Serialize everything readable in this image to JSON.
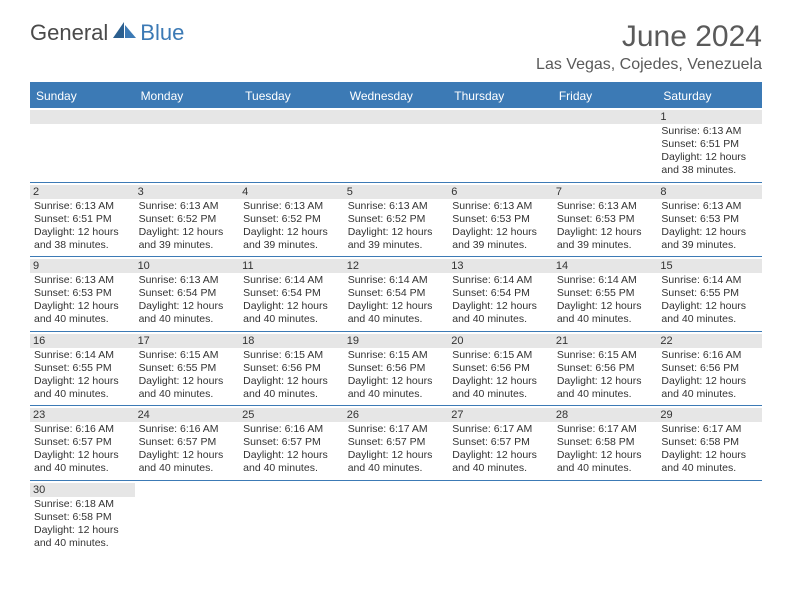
{
  "logo": {
    "text1": "General",
    "text2": "Blue"
  },
  "title": "June 2024",
  "location": "Las Vegas, Cojedes, Venezuela",
  "day_names": [
    "Sunday",
    "Monday",
    "Tuesday",
    "Wednesday",
    "Thursday",
    "Friday",
    "Saturday"
  ],
  "colors": {
    "header_bg": "#3c7ab5",
    "header_text": "#ffffff",
    "date_bg": "#e6e6e6",
    "border": "#3c7ab5",
    "title_color": "#5a5a5a",
    "text_color": "#333333"
  },
  "typography": {
    "title_fontsize": 30,
    "location_fontsize": 16,
    "dayheader_fontsize": 12,
    "date_fontsize": 11,
    "info_fontsize": 10.5
  },
  "weeks": [
    [
      null,
      null,
      null,
      null,
      null,
      null,
      {
        "n": "1",
        "sunrise": "6:13 AM",
        "sunset": "6:51 PM",
        "daylight": "12 hours and 38 minutes."
      }
    ],
    [
      {
        "n": "2",
        "sunrise": "6:13 AM",
        "sunset": "6:51 PM",
        "daylight": "12 hours and 38 minutes."
      },
      {
        "n": "3",
        "sunrise": "6:13 AM",
        "sunset": "6:52 PM",
        "daylight": "12 hours and 39 minutes."
      },
      {
        "n": "4",
        "sunrise": "6:13 AM",
        "sunset": "6:52 PM",
        "daylight": "12 hours and 39 minutes."
      },
      {
        "n": "5",
        "sunrise": "6:13 AM",
        "sunset": "6:52 PM",
        "daylight": "12 hours and 39 minutes."
      },
      {
        "n": "6",
        "sunrise": "6:13 AM",
        "sunset": "6:53 PM",
        "daylight": "12 hours and 39 minutes."
      },
      {
        "n": "7",
        "sunrise": "6:13 AM",
        "sunset": "6:53 PM",
        "daylight": "12 hours and 39 minutes."
      },
      {
        "n": "8",
        "sunrise": "6:13 AM",
        "sunset": "6:53 PM",
        "daylight": "12 hours and 39 minutes."
      }
    ],
    [
      {
        "n": "9",
        "sunrise": "6:13 AM",
        "sunset": "6:53 PM",
        "daylight": "12 hours and 40 minutes."
      },
      {
        "n": "10",
        "sunrise": "6:13 AM",
        "sunset": "6:54 PM",
        "daylight": "12 hours and 40 minutes."
      },
      {
        "n": "11",
        "sunrise": "6:14 AM",
        "sunset": "6:54 PM",
        "daylight": "12 hours and 40 minutes."
      },
      {
        "n": "12",
        "sunrise": "6:14 AM",
        "sunset": "6:54 PM",
        "daylight": "12 hours and 40 minutes."
      },
      {
        "n": "13",
        "sunrise": "6:14 AM",
        "sunset": "6:54 PM",
        "daylight": "12 hours and 40 minutes."
      },
      {
        "n": "14",
        "sunrise": "6:14 AM",
        "sunset": "6:55 PM",
        "daylight": "12 hours and 40 minutes."
      },
      {
        "n": "15",
        "sunrise": "6:14 AM",
        "sunset": "6:55 PM",
        "daylight": "12 hours and 40 minutes."
      }
    ],
    [
      {
        "n": "16",
        "sunrise": "6:14 AM",
        "sunset": "6:55 PM",
        "daylight": "12 hours and 40 minutes."
      },
      {
        "n": "17",
        "sunrise": "6:15 AM",
        "sunset": "6:55 PM",
        "daylight": "12 hours and 40 minutes."
      },
      {
        "n": "18",
        "sunrise": "6:15 AM",
        "sunset": "6:56 PM",
        "daylight": "12 hours and 40 minutes."
      },
      {
        "n": "19",
        "sunrise": "6:15 AM",
        "sunset": "6:56 PM",
        "daylight": "12 hours and 40 minutes."
      },
      {
        "n": "20",
        "sunrise": "6:15 AM",
        "sunset": "6:56 PM",
        "daylight": "12 hours and 40 minutes."
      },
      {
        "n": "21",
        "sunrise": "6:15 AM",
        "sunset": "6:56 PM",
        "daylight": "12 hours and 40 minutes."
      },
      {
        "n": "22",
        "sunrise": "6:16 AM",
        "sunset": "6:56 PM",
        "daylight": "12 hours and 40 minutes."
      }
    ],
    [
      {
        "n": "23",
        "sunrise": "6:16 AM",
        "sunset": "6:57 PM",
        "daylight": "12 hours and 40 minutes."
      },
      {
        "n": "24",
        "sunrise": "6:16 AM",
        "sunset": "6:57 PM",
        "daylight": "12 hours and 40 minutes."
      },
      {
        "n": "25",
        "sunrise": "6:16 AM",
        "sunset": "6:57 PM",
        "daylight": "12 hours and 40 minutes."
      },
      {
        "n": "26",
        "sunrise": "6:17 AM",
        "sunset": "6:57 PM",
        "daylight": "12 hours and 40 minutes."
      },
      {
        "n": "27",
        "sunrise": "6:17 AM",
        "sunset": "6:57 PM",
        "daylight": "12 hours and 40 minutes."
      },
      {
        "n": "28",
        "sunrise": "6:17 AM",
        "sunset": "6:58 PM",
        "daylight": "12 hours and 40 minutes."
      },
      {
        "n": "29",
        "sunrise": "6:17 AM",
        "sunset": "6:58 PM",
        "daylight": "12 hours and 40 minutes."
      }
    ],
    [
      {
        "n": "30",
        "sunrise": "6:18 AM",
        "sunset": "6:58 PM",
        "daylight": "12 hours and 40 minutes."
      },
      null,
      null,
      null,
      null,
      null,
      null
    ]
  ],
  "labels": {
    "sunrise": "Sunrise:",
    "sunset": "Sunset:",
    "daylight": "Daylight:"
  }
}
